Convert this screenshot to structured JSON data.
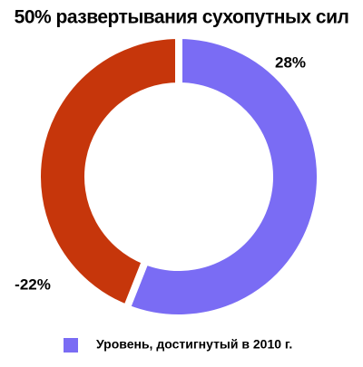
{
  "chart_data": {
    "type": "donut",
    "title": "50% развертывания сухопутных сил",
    "categories": [
      "Уровень, достигнутый в 2010 г.",
      null
    ],
    "values": [
      28,
      -22
    ],
    "value_labels": [
      "28%",
      "-22%"
    ],
    "colors": [
      "#7a6cf4",
      "#c6360b"
    ]
  }
}
